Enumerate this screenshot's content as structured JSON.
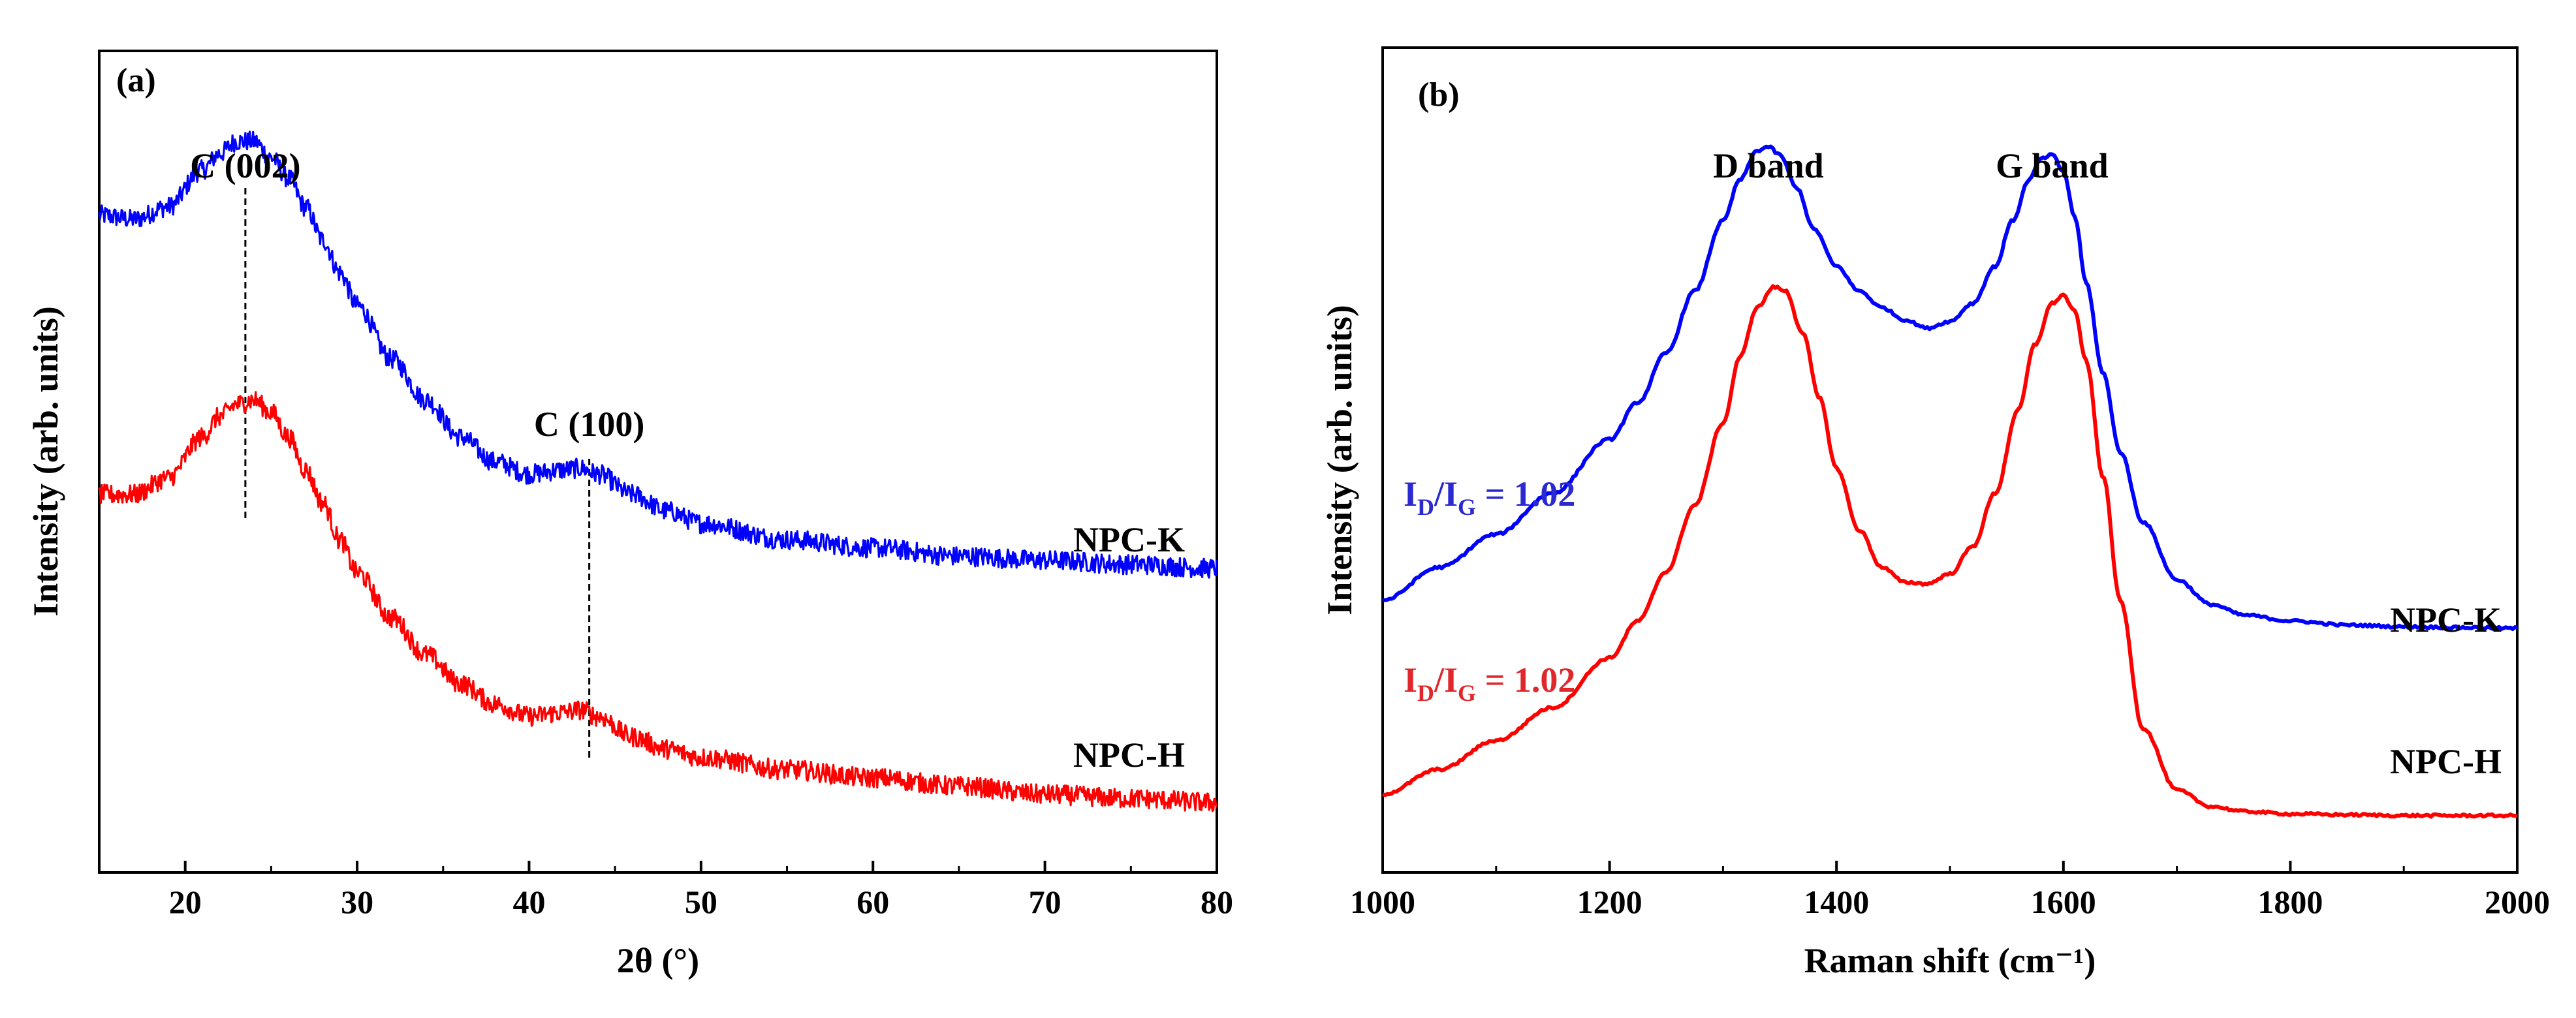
{
  "chart_data": [
    {
      "panel": "(a)",
      "type": "line",
      "xlabel": "2θ (°)",
      "ylabel": "Intensity (arb. units)",
      "xlim": [
        15,
        80
      ],
      "xticks": [
        20,
        30,
        40,
        50,
        60,
        70,
        80
      ],
      "yticks_shown": false,
      "annotations": [
        {
          "text": "C (002)",
          "x": 23.5
        },
        {
          "text": "C (100)",
          "x": 43.5
        }
      ],
      "series": [
        {
          "name": "NPC-K",
          "color": "#0000ff",
          "x": [
            15,
            17,
            19,
            21,
            22,
            23,
            24,
            25,
            26,
            27,
            28,
            29,
            30,
            32,
            34,
            36,
            38,
            40,
            42,
            43,
            44,
            46,
            48,
            50,
            55,
            60,
            65,
            70,
            75,
            80
          ],
          "y": [
            0.8,
            0.795,
            0.81,
            0.855,
            0.875,
            0.89,
            0.89,
            0.87,
            0.845,
            0.81,
            0.77,
            0.73,
            0.69,
            0.625,
            0.575,
            0.53,
            0.5,
            0.485,
            0.49,
            0.492,
            0.485,
            0.46,
            0.44,
            0.425,
            0.405,
            0.395,
            0.385,
            0.38,
            0.375,
            0.37
          ]
        },
        {
          "name": "NPC-H",
          "color": "#ff0000",
          "x": [
            15,
            17,
            19,
            21,
            22,
            23,
            24,
            25,
            26,
            27,
            28,
            29,
            30,
            32,
            34,
            36,
            38,
            40,
            42,
            43,
            44,
            46,
            48,
            50,
            55,
            60,
            65,
            70,
            75,
            80
          ],
          "y": [
            0.46,
            0.46,
            0.48,
            0.53,
            0.555,
            0.57,
            0.575,
            0.56,
            0.53,
            0.49,
            0.45,
            0.405,
            0.365,
            0.31,
            0.265,
            0.23,
            0.205,
            0.19,
            0.195,
            0.198,
            0.19,
            0.165,
            0.15,
            0.14,
            0.125,
            0.115,
            0.105,
            0.095,
            0.09,
            0.085
          ]
        }
      ]
    },
    {
      "panel": "(b)",
      "type": "line",
      "xlabel": "Raman shift (cm⁻¹)",
      "ylabel": "Intensity (arb. units)",
      "xlim": [
        1000,
        2000
      ],
      "xticks": [
        1000,
        1200,
        1400,
        1600,
        1800,
        2000
      ],
      "yticks_shown": false,
      "annotations": [
        {
          "text": "D band",
          "x": 1340
        },
        {
          "text": "G band",
          "x": 1590
        }
      ],
      "ratios": [
        {
          "main": "I",
          "sub1": "D",
          "mid": "/I",
          "sub2": "G",
          "value": " = 1.02",
          "color": "#2a2acf"
        },
        {
          "main": "I",
          "sub1": "D",
          "mid": "/I",
          "sub2": "G",
          "value": " = 1.02",
          "color": "#e0282c"
        }
      ],
      "series": [
        {
          "name": "NPC-K",
          "color": "#0000ff",
          "x": [
            1000,
            1050,
            1100,
            1150,
            1200,
            1225,
            1250,
            1275,
            1300,
            1315,
            1330,
            1340,
            1350,
            1365,
            1380,
            1400,
            1420,
            1440,
            1460,
            1480,
            1500,
            1520,
            1540,
            1555,
            1570,
            1580,
            1590,
            1600,
            1610,
            1620,
            1635,
            1650,
            1670,
            1700,
            1730,
            1760,
            1800,
            1850,
            1900,
            1950,
            2000
          ],
          "y": [
            0.33,
            0.37,
            0.41,
            0.46,
            0.525,
            0.57,
            0.63,
            0.705,
            0.79,
            0.84,
            0.875,
            0.88,
            0.87,
            0.83,
            0.78,
            0.735,
            0.705,
            0.685,
            0.67,
            0.66,
            0.668,
            0.69,
            0.735,
            0.79,
            0.84,
            0.865,
            0.87,
            0.85,
            0.795,
            0.715,
            0.605,
            0.51,
            0.425,
            0.355,
            0.325,
            0.312,
            0.305,
            0.3,
            0.298,
            0.297,
            0.296
          ]
        },
        {
          "name": "NPC-H",
          "color": "#ff0000",
          "x": [
            1000,
            1050,
            1100,
            1150,
            1200,
            1225,
            1250,
            1275,
            1300,
            1315,
            1330,
            1345,
            1355,
            1370,
            1385,
            1400,
            1420,
            1440,
            1460,
            1480,
            1500,
            1520,
            1540,
            1560,
            1575,
            1590,
            1600,
            1610,
            1620,
            1635,
            1650,
            1670,
            1700,
            1730,
            1760,
            1800,
            1850,
            1900,
            1950,
            2000
          ],
          "y": [
            0.095,
            0.125,
            0.16,
            0.2,
            0.26,
            0.305,
            0.365,
            0.445,
            0.545,
            0.625,
            0.685,
            0.71,
            0.705,
            0.655,
            0.575,
            0.49,
            0.415,
            0.37,
            0.352,
            0.35,
            0.362,
            0.395,
            0.46,
            0.56,
            0.64,
            0.69,
            0.7,
            0.68,
            0.62,
            0.48,
            0.33,
            0.175,
            0.1,
            0.08,
            0.074,
            0.071,
            0.07,
            0.069,
            0.069,
            0.069
          ]
        }
      ]
    }
  ]
}
